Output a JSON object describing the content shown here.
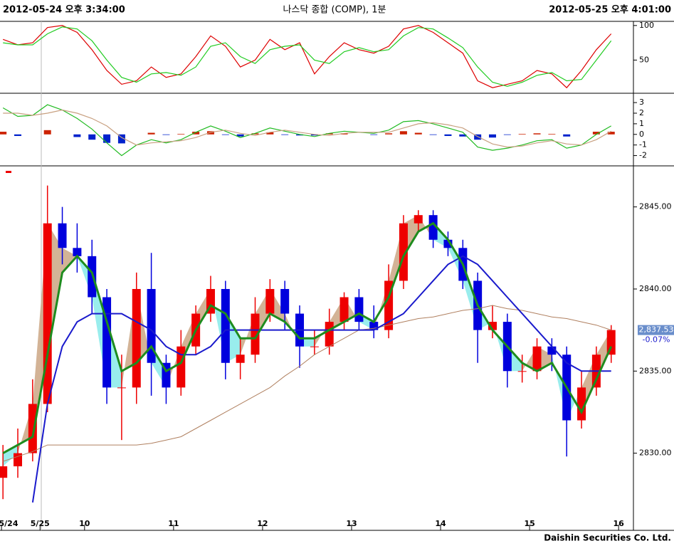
{
  "header": {
    "left": "2012-05-24 오후 3:34:00",
    "center": "나스닥 종합 (COMP), 1분",
    "right": "2012-05-25 오후 4:01:00"
  },
  "footer": "Daishin Securities Co. Ltd.",
  "chart_data": [
    {
      "type": "line",
      "xlim": [
        -27,
        400
      ],
      "ylim": [
        2,
        106
      ],
      "yticks": [
        50,
        100
      ],
      "x": [
        -25,
        -15,
        -5,
        5,
        15,
        25,
        35,
        45,
        55,
        65,
        75,
        85,
        95,
        105,
        115,
        125,
        135,
        145,
        155,
        165,
        175,
        185,
        195,
        205,
        215,
        225,
        235,
        245,
        255,
        265,
        275,
        285,
        295,
        305,
        315,
        325,
        335,
        345,
        355,
        365,
        375,
        385
      ],
      "series": [
        {
          "color": "#dd0000",
          "values": [
            80,
            72,
            75,
            97,
            100,
            90,
            65,
            35,
            15,
            20,
            40,
            25,
            30,
            55,
            85,
            70,
            40,
            50,
            80,
            65,
            75,
            30,
            55,
            75,
            65,
            60,
            70,
            95,
            100,
            90,
            75,
            60,
            20,
            10,
            15,
            20,
            35,
            30,
            10,
            35,
            65,
            88
          ]
        },
        {
          "color": "#22cc22",
          "values": [
            75,
            72,
            72,
            88,
            98,
            95,
            78,
            50,
            25,
            18,
            30,
            32,
            28,
            40,
            70,
            75,
            55,
            45,
            65,
            70,
            72,
            50,
            45,
            62,
            68,
            62,
            65,
            85,
            97,
            95,
            82,
            68,
            40,
            18,
            12,
            18,
            28,
            32,
            20,
            22,
            50,
            78
          ]
        }
      ]
    },
    {
      "type": "line",
      "xlim": [
        -27,
        400
      ],
      "ylim": [
        -2.97,
        3.88
      ],
      "yticks": [
        -2,
        -1,
        0,
        1,
        2,
        3
      ],
      "x": [
        -25,
        -15,
        -5,
        5,
        15,
        25,
        35,
        45,
        55,
        65,
        75,
        85,
        95,
        105,
        115,
        125,
        135,
        145,
        155,
        165,
        175,
        185,
        195,
        205,
        215,
        225,
        235,
        245,
        255,
        265,
        275,
        285,
        295,
        305,
        315,
        325,
        335,
        345,
        355,
        365,
        375,
        385
      ],
      "series": [
        {
          "color": "#22bb22",
          "values": [
            2.5,
            1.7,
            1.8,
            2.8,
            2.3,
            1.5,
            0.5,
            -0.8,
            -2.0,
            -1.0,
            -0.5,
            -0.8,
            -0.5,
            0.2,
            0.8,
            0.3,
            -0.3,
            0.1,
            0.6,
            0.3,
            0,
            -0.2,
            0.1,
            0.3,
            0.2,
            0.1,
            0.4,
            1.2,
            1.3,
            1.0,
            0.6,
            0.2,
            -1.2,
            -1.5,
            -1.3,
            -1.0,
            -0.6,
            -0.5,
            -1.3,
            -1.0,
            0,
            0.8
          ]
        },
        {
          "color": "#c8a080",
          "values": [
            2.0,
            2.0,
            1.8,
            2.0,
            2.3,
            2.0,
            1.5,
            0.8,
            -0.3,
            -1.0,
            -0.8,
            -0.7,
            -0.6,
            -0.3,
            0.2,
            0.4,
            0.1,
            -0.1,
            0.2,
            0.4,
            0.2,
            0,
            -0.1,
            0.1,
            0.2,
            0.2,
            0.2,
            0.6,
            1.0,
            1.1,
            0.9,
            0.6,
            -0.2,
            -0.9,
            -1.2,
            -1.1,
            -0.8,
            -0.6,
            -0.9,
            -1.0,
            -0.5,
            0.3
          ]
        },
        {
          "style": "bar",
          "up_color": "#cc2200",
          "down_color": "#0022cc",
          "values": [
            0.25,
            -0.15,
            0,
            0.4,
            0,
            -0.25,
            -0.5,
            -0.8,
            -0.85,
            0,
            0.15,
            -0.05,
            0.05,
            0.25,
            0.3,
            -0.05,
            -0.2,
            0.1,
            0.2,
            -0.05,
            -0.1,
            -0.1,
            0.1,
            0.1,
            0,
            -0.05,
            0.1,
            0.3,
            0.15,
            -0.05,
            -0.15,
            -0.2,
            -0.5,
            -0.3,
            -0.05,
            0.05,
            0.1,
            0.05,
            -0.2,
            0,
            0.25,
            0.25
          ]
        }
      ]
    },
    {
      "type": "candlestick",
      "xlim": [
        -27,
        400
      ],
      "ylim": [
        2825.3,
        2847.5
      ],
      "yticks": [
        {
          "value": 2830,
          "label": "2830.00"
        },
        {
          "value": 2835,
          "label": "2835.00"
        },
        {
          "value": 2840,
          "label": "2840.00"
        },
        {
          "value": 2845,
          "label": "2845.00"
        }
      ],
      "xticks": [
        {
          "value": -26,
          "label": "5/24"
        },
        {
          "value": 0,
          "label": "5/25"
        },
        {
          "value": 30,
          "label": "10"
        },
        {
          "value": 90,
          "label": "11"
        },
        {
          "value": 150,
          "label": "12"
        },
        {
          "value": 210,
          "label": "13"
        },
        {
          "value": 270,
          "label": "14"
        },
        {
          "value": 330,
          "label": "15"
        },
        {
          "value": 390,
          "label": "16"
        }
      ],
      "last_price_label": "2,837.53",
      "change_label": "-0.07%",
      "up_color": "#ee0000",
      "down_color": "#0000dd",
      "x": [
        -25,
        -15,
        -5,
        5,
        15,
        25,
        35,
        45,
        55,
        65,
        75,
        85,
        95,
        105,
        115,
        125,
        135,
        145,
        155,
        165,
        175,
        185,
        195,
        205,
        215,
        225,
        235,
        245,
        255,
        265,
        275,
        285,
        295,
        305,
        315,
        325,
        335,
        345,
        355,
        365,
        375,
        385
      ],
      "open": [
        2828.5,
        2829.2,
        2830,
        2833,
        2844,
        2842.5,
        2842,
        2839.5,
        2834,
        2834,
        2840,
        2835.5,
        2834,
        2836.5,
        2838.5,
        2840,
        2835.5,
        2836,
        2838.5,
        2840,
        2838.5,
        2836.5,
        2836.5,
        2838,
        2839.5,
        2838,
        2837.5,
        2840.5,
        2844,
        2844.5,
        2843,
        2842.5,
        2840.5,
        2837.5,
        2838,
        2835,
        2835,
        2836.5,
        2836,
        2832,
        2834,
        2836
      ],
      "high": [
        2830.5,
        2831.5,
        2834.5,
        2846.3,
        2845,
        2844,
        2843,
        2840,
        2836,
        2841,
        2842.2,
        2836,
        2837.5,
        2839,
        2840.8,
        2840.5,
        2837,
        2839.5,
        2840.6,
        2840.5,
        2839,
        2837.5,
        2838.8,
        2839.8,
        2840,
        2839,
        2841.5,
        2844.5,
        2844.8,
        2844.8,
        2843.5,
        2843,
        2841,
        2839,
        2838.5,
        2836,
        2837,
        2837,
        2836.5,
        2835,
        2836.5,
        2837.8
      ],
      "low": [
        2827.2,
        2828.5,
        2829.5,
        2832.5,
        2841.5,
        2841,
        2838.5,
        2833,
        2830.8,
        2833,
        2833.5,
        2833,
        2833.5,
        2836,
        2838,
        2834.5,
        2834.5,
        2835.5,
        2838,
        2837.5,
        2835.2,
        2836,
        2836,
        2837.5,
        2837.5,
        2837,
        2837,
        2840,
        2843.5,
        2842.5,
        2842,
        2840,
        2835.5,
        2837,
        2834,
        2834.3,
        2834.5,
        2835,
        2829.8,
        2831.5,
        2833.5,
        2835.5
      ],
      "close": [
        2829.2,
        2830,
        2833,
        2844,
        2842.5,
        2842,
        2839.5,
        2834,
        2834,
        2840,
        2835.5,
        2834,
        2836.5,
        2838.5,
        2840,
        2835.5,
        2836,
        2838.5,
        2840,
        2838.5,
        2836.5,
        2836.5,
        2838,
        2839.5,
        2838,
        2837.5,
        2840.5,
        2844,
        2844.5,
        2843,
        2842.5,
        2840.5,
        2837.5,
        2838,
        2835,
        2835,
        2836.5,
        2836,
        2832,
        2834,
        2836,
        2837.5
      ],
      "series": [
        {
          "color": "#1e8c1e",
          "width": 3,
          "values": [
            2830,
            2830.5,
            2831,
            2836,
            2841,
            2842,
            2841,
            2838,
            2835,
            2835.5,
            2836.5,
            2835,
            2835.5,
            2837.5,
            2839,
            2838.5,
            2837,
            2837,
            2838.5,
            2838,
            2837,
            2837,
            2837.5,
            2838,
            2838.5,
            2838,
            2839.5,
            2842,
            2843.5,
            2844,
            2843,
            2841.5,
            2839,
            2837.5,
            2836.5,
            2835.5,
            2835,
            2835.5,
            2834,
            2832.5,
            2834.5,
            2836.5
          ]
        },
        {
          "color": "#1a1acc",
          "width": 2,
          "values": [
            null,
            null,
            2827,
            2833,
            2836.5,
            2838,
            2838.5,
            2838.5,
            2838.5,
            2838,
            2837.5,
            2836.5,
            2836,
            2836,
            2836.5,
            2837.5,
            2837.5,
            2837.5,
            2837.5,
            2837.5,
            2837.5,
            2837.5,
            2837.5,
            2837.5,
            2837.5,
            2837.5,
            2838,
            2838.5,
            2839.5,
            2840.5,
            2841.5,
            2842,
            2841.5,
            2840.5,
            2839.5,
            2838.5,
            2837.5,
            2836.5,
            2835.5,
            2835,
            2835,
            2835
          ]
        },
        {
          "color": "#b08060",
          "width": 1,
          "values": [
            2829.5,
            2829.8,
            2830.1,
            2830.5,
            2830.5,
            2830.5,
            2830.5,
            2830.5,
            2830.5,
            2830.5,
            2830.6,
            2830.8,
            2831,
            2831.5,
            2832,
            2832.5,
            2833,
            2833.5,
            2834,
            2834.7,
            2835.3,
            2836,
            2836.5,
            2837,
            2837.5,
            2837.6,
            2837.8,
            2838,
            2838.2,
            2838.3,
            2838.5,
            2838.7,
            2838.8,
            2839,
            2838.8,
            2838.7,
            2838.5,
            2838.3,
            2838.2,
            2838,
            2837.8,
            2837.5
          ]
        }
      ]
    }
  ]
}
